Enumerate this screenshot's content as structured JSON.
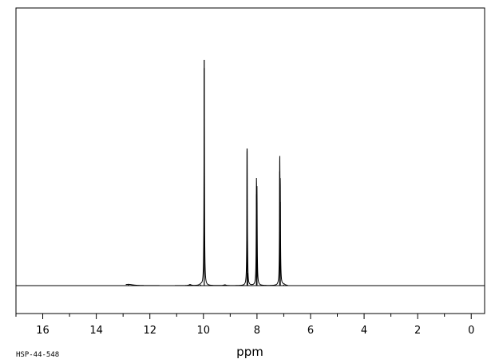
{
  "chart_data": {
    "type": "line",
    "title": "",
    "xlabel": "ppm",
    "ylabel": "",
    "xlim": [
      17.0,
      -0.5
    ],
    "x_reversed": true,
    "xticks": [
      16,
      14,
      12,
      10,
      8,
      6,
      4,
      2,
      0
    ],
    "minor_tick_step": 1,
    "baseline": 0,
    "ylim": [
      -0.11,
      1.0
    ],
    "grid": false,
    "legend": "none",
    "line_color": "#000000",
    "spectrum_range": [
      12.9,
      6.85
    ],
    "peaks": [
      {
        "ppm": 9.97,
        "intensity": 0.89,
        "width": 0.01
      },
      {
        "ppm": 8.37,
        "intensity": 0.54,
        "width": 0.01
      },
      {
        "ppm": 8.35,
        "intensity": 0.05,
        "width": 0.01
      },
      {
        "ppm": 8.02,
        "intensity": 0.36,
        "width": 0.01
      },
      {
        "ppm": 8.0,
        "intensity": 0.32,
        "width": 0.01
      },
      {
        "ppm": 7.15,
        "intensity": 0.45,
        "width": 0.01
      },
      {
        "ppm": 7.13,
        "intensity": 0.33,
        "width": 0.01
      },
      {
        "ppm": 12.8,
        "intensity": 0.005,
        "width": 0.2
      },
      {
        "ppm": 10.5,
        "intensity": 0.004,
        "width": 0.05
      },
      {
        "ppm": 10.1,
        "intensity": 0.004,
        "width": 0.05
      },
      {
        "ppm": 9.2,
        "intensity": 0.003,
        "width": 0.05
      },
      {
        "ppm": 7.0,
        "intensity": 0.004,
        "width": 0.05
      }
    ]
  },
  "footer_code": "HSP-44-548"
}
